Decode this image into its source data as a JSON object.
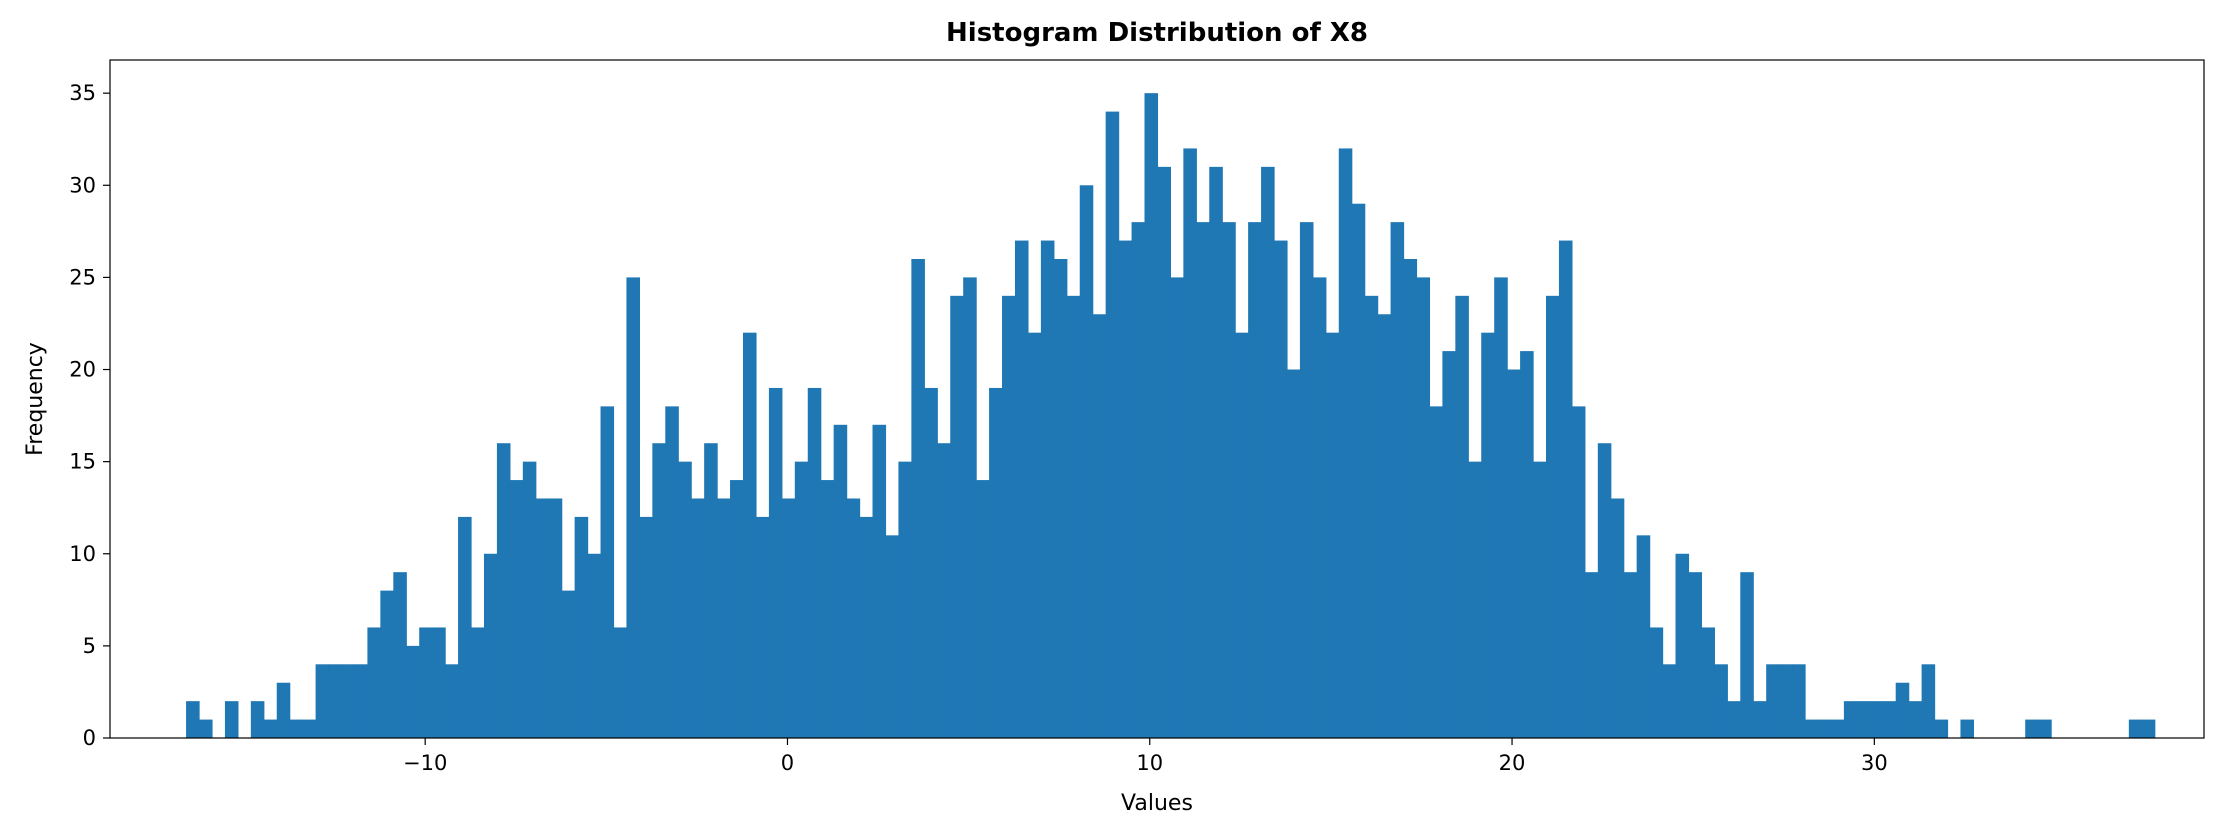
{
  "chart_data": {
    "type": "bar",
    "title": "Histogram Distribution of X8",
    "xlabel": "Values",
    "ylabel": "Frequency",
    "xlim": [
      -18.7,
      39.1
    ],
    "ylim": [
      0,
      36.8
    ],
    "xticks": [
      -10,
      0,
      10,
      20,
      30
    ],
    "xtick_labels": [
      "−10",
      "0",
      "10",
      "20",
      "30"
    ],
    "yticks": [
      0,
      5,
      10,
      15,
      20,
      25,
      30,
      35
    ],
    "ytick_labels": [
      "0",
      "5",
      "10",
      "15",
      "20",
      "25",
      "30",
      "35"
    ],
    "grid": false,
    "legend": "none",
    "bar_color": "#1f77b4",
    "bin_start": -16.6,
    "bin_width": 0.3575,
    "frequencies": [
      2,
      1,
      0,
      2,
      0,
      2,
      1,
      3,
      1,
      1,
      4,
      4,
      4,
      4,
      6,
      8,
      9,
      5,
      6,
      6,
      4,
      12,
      6,
      10,
      16,
      14,
      15,
      13,
      13,
      8,
      12,
      10,
      18,
      6,
      25,
      12,
      16,
      18,
      15,
      13,
      16,
      13,
      14,
      22,
      12,
      19,
      13,
      15,
      19,
      14,
      17,
      13,
      12,
      17,
      11,
      15,
      26,
      19,
      16,
      24,
      25,
      14,
      19,
      24,
      27,
      22,
      27,
      26,
      24,
      30,
      23,
      34,
      27,
      28,
      35,
      31,
      25,
      32,
      28,
      31,
      28,
      22,
      28,
      31,
      27,
      20,
      28,
      25,
      22,
      32,
      29,
      24,
      23,
      28,
      26,
      25,
      18,
      21,
      24,
      15,
      22,
      25,
      20,
      21,
      15,
      24,
      27,
      18,
      9,
      16,
      13,
      9,
      11,
      6,
      4,
      10,
      9,
      6,
      4,
      2,
      9,
      2,
      4,
      4,
      4,
      1,
      1,
      1,
      2,
      2,
      2,
      2,
      3,
      2,
      4,
      1,
      0,
      1,
      0,
      0,
      0,
      0,
      1,
      1,
      0,
      0,
      0,
      0,
      0,
      0,
      1,
      1
    ]
  }
}
